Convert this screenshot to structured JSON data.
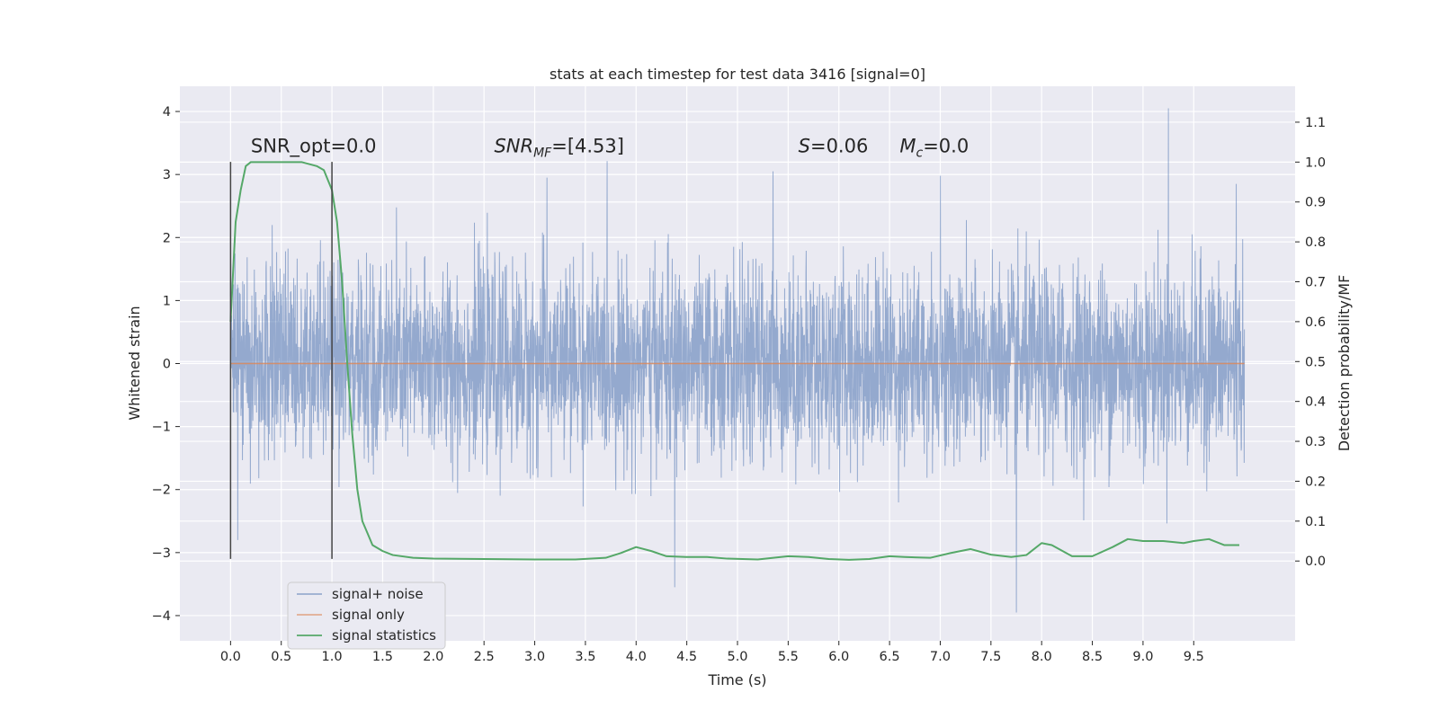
{
  "chart_data": {
    "type": "line",
    "title": "stats at each timestep for test data 3416 [signal=0]",
    "xlabel": "Time (s)",
    "ylabel": "Whitened strain",
    "ylabel_right": "Detection probability/MF",
    "xlim": [
      -0.5,
      10.5
    ],
    "ylim": [
      -4.4,
      4.4
    ],
    "ylim_right": [
      -0.2,
      1.19
    ],
    "x_ticks": [
      0.0,
      0.5,
      1.0,
      1.5,
      2.0,
      2.5,
      3.0,
      3.5,
      4.0,
      4.5,
      5.0,
      5.5,
      6.0,
      6.5,
      7.0,
      7.5,
      8.0,
      8.5,
      9.0,
      9.5
    ],
    "x_tick_labels": [
      "0.0",
      "0.5",
      "1.0",
      "1.5",
      "2.0",
      "2.5",
      "3.0",
      "3.5",
      "4.0",
      "4.5",
      "5.0",
      "5.5",
      "6.0",
      "6.5",
      "7.0",
      "7.5",
      "8.0",
      "8.5",
      "9.0",
      "9.5"
    ],
    "y_ticks": [
      -4,
      -3,
      -2,
      -1,
      0,
      1,
      2,
      3,
      4
    ],
    "y_tick_labels": [
      "−4",
      "−3",
      "−2",
      "−1",
      "0",
      "1",
      "2",
      "3",
      "4"
    ],
    "y_right_ticks": [
      0.0,
      0.1,
      0.2,
      0.3,
      0.4,
      0.5,
      0.6,
      0.7,
      0.8,
      0.9,
      1.0,
      1.1
    ],
    "y_right_tick_labels": [
      "0.0",
      "0.1",
      "0.2",
      "0.3",
      "0.4",
      "0.5",
      "0.6",
      "0.7",
      "0.8",
      "0.9",
      "1.0",
      "1.1"
    ],
    "grid": true,
    "legend_position": "lower-left",
    "series": [
      {
        "name": "signal+ noise",
        "axis": "left",
        "color": "#4c72b0",
        "description_values": "white noise, 4096 samples over 0-10 s, std ~0.75",
        "x_range": [
          0.0,
          10.0
        ],
        "noise_std": 0.75,
        "extreme_values": [
          {
            "x": 9.25,
            "y": 4.05
          },
          {
            "x": 4.38,
            "y": -3.55
          },
          {
            "x": 7.75,
            "y": -3.95
          },
          {
            "x": 0.07,
            "y": -2.8
          },
          {
            "x": 9.92,
            "y": 2.85
          },
          {
            "x": 5.35,
            "y": 3.05
          },
          {
            "x": 3.12,
            "y": 2.95
          },
          {
            "x": 7.0,
            "y": 2.98
          }
        ]
      },
      {
        "name": "signal only",
        "axis": "left",
        "color": "#dd8452",
        "x": [
          0.0,
          10.0
        ],
        "y": [
          0.0,
          0.0
        ]
      },
      {
        "name": "signal statistics",
        "axis": "right",
        "color": "#55a868",
        "x": [
          0.0,
          0.05,
          0.1,
          0.15,
          0.2,
          0.3,
          0.5,
          0.7,
          0.85,
          0.92,
          1.0,
          1.05,
          1.1,
          1.15,
          1.2,
          1.25,
          1.3,
          1.35,
          1.4,
          1.5,
          1.6,
          1.8,
          2.0,
          2.5,
          3.0,
          3.4,
          3.7,
          3.85,
          4.0,
          4.15,
          4.3,
          4.5,
          4.7,
          4.9,
          5.2,
          5.5,
          5.7,
          5.9,
          6.1,
          6.3,
          6.5,
          6.65,
          6.9,
          7.1,
          7.3,
          7.5,
          7.7,
          7.85,
          8.0,
          8.1,
          8.3,
          8.5,
          8.7,
          8.85,
          9.0,
          9.2,
          9.4,
          9.5,
          9.65,
          9.8,
          9.95
        ],
        "y": [
          0.6,
          0.85,
          0.93,
          0.99,
          1.0,
          1.0,
          1.0,
          1.0,
          0.99,
          0.98,
          0.93,
          0.85,
          0.7,
          0.5,
          0.32,
          0.18,
          0.1,
          0.07,
          0.04,
          0.025,
          0.015,
          0.008,
          0.006,
          0.005,
          0.004,
          0.004,
          0.008,
          0.02,
          0.035,
          0.025,
          0.012,
          0.01,
          0.01,
          0.006,
          0.004,
          0.012,
          0.01,
          0.005,
          0.003,
          0.005,
          0.012,
          0.01,
          0.008,
          0.02,
          0.03,
          0.016,
          0.01,
          0.015,
          0.045,
          0.04,
          0.012,
          0.012,
          0.035,
          0.055,
          0.05,
          0.05,
          0.045,
          0.05,
          0.055,
          0.04,
          0.04
        ]
      }
    ],
    "vertical_lines": [
      {
        "x": 0.0,
        "y_range": [
          -3.1,
          3.2
        ],
        "color": "#444444"
      },
      {
        "x": 1.0,
        "y_range": [
          -3.1,
          3.2
        ],
        "color": "#444444"
      }
    ],
    "annotations": [
      {
        "text": "SNR_opt=0.0",
        "x": 0.2,
        "y": 3.35,
        "math": false
      },
      {
        "text_main": "SNR",
        "text_sub": "MF",
        "text_rest": "=[4.53]",
        "x": 2.6,
        "y": 3.35,
        "math": true
      },
      {
        "text_main": "S",
        "text_sub": "",
        "text_rest": "=0.06",
        "x": 5.6,
        "y": 3.35,
        "math": true
      },
      {
        "text_main": "M",
        "text_sub": "c",
        "text_rest": "=0.0",
        "x": 6.6,
        "y": 3.35,
        "math": true
      }
    ]
  },
  "style": {
    "plot_background": "#eaeaf2",
    "grid_color": "#ffffff",
    "legend_background": "#eaeaf2",
    "legend_border": "#cccccc"
  }
}
